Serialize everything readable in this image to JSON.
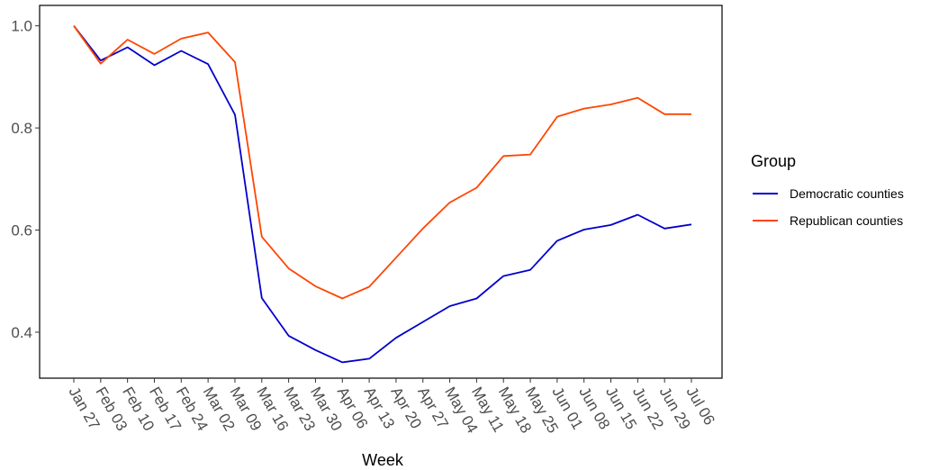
{
  "chart_data": {
    "type": "line",
    "xlabel": "Week",
    "ylabel": "",
    "categories": [
      "Jan 27",
      "Feb 03",
      "Feb 10",
      "Feb 17",
      "Feb 24",
      "Mar 02",
      "Mar 09",
      "Mar 16",
      "Mar 23",
      "Mar 30",
      "Apr 06",
      "Apr 13",
      "Apr 20",
      "Apr 27",
      "May 04",
      "May 11",
      "May 18",
      "May 25",
      "Jun 01",
      "Jun 08",
      "Jun 15",
      "Jun 22",
      "Jun 29",
      "Jul 06"
    ],
    "y_ticks": [
      "0.4",
      "0.6",
      "0.8",
      "1.0"
    ],
    "ylim": [
      0.31,
      1.04
    ],
    "grid": false,
    "legend": {
      "title": "Group",
      "position": "right"
    },
    "series": [
      {
        "name": "Democratic counties",
        "color": "#0000cc",
        "values": [
          1.0,
          0.932,
          0.958,
          0.923,
          0.951,
          0.925,
          0.826,
          0.467,
          0.393,
          0.365,
          0.341,
          0.348,
          0.389,
          0.42,
          0.451,
          0.466,
          0.51,
          0.522,
          0.579,
          0.601,
          0.61,
          0.63,
          0.603,
          0.611
        ]
      },
      {
        "name": "Republican counties",
        "color": "#ff4500",
        "values": [
          1.0,
          0.926,
          0.973,
          0.945,
          0.975,
          0.987,
          0.929,
          0.587,
          0.525,
          0.49,
          0.466,
          0.489,
          0.546,
          0.603,
          0.654,
          0.683,
          0.745,
          0.748,
          0.822,
          0.838,
          0.846,
          0.859,
          0.827,
          0.827
        ]
      }
    ]
  }
}
